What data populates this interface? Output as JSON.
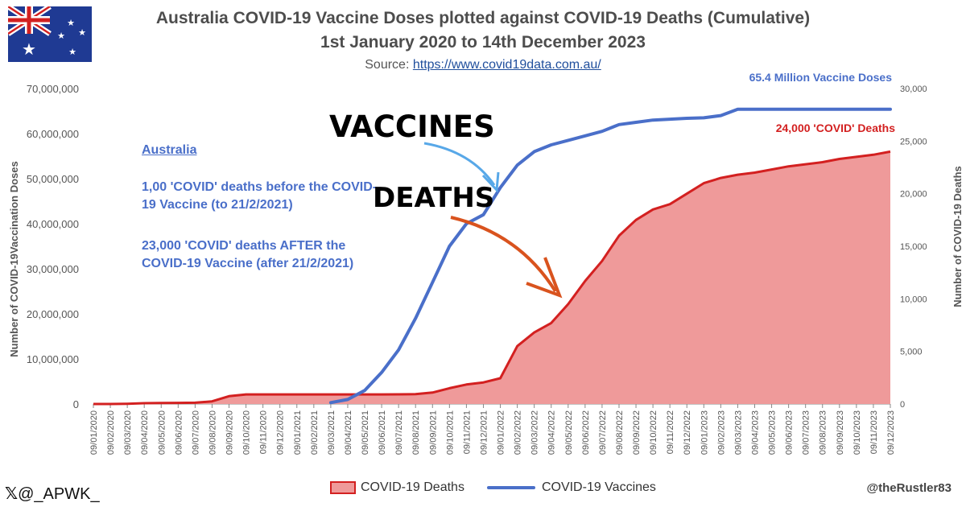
{
  "title_line1": "Australia COVID-19 Vaccine Doses plotted against COVID-19 Deaths (Cumulative)",
  "title_line2": "1st January 2020 to 14th December 2023",
  "source_prefix": "Source: ",
  "source_link": "https://www.covid19data.com.au/",
  "annotations": {
    "country": "Australia",
    "before": "1,00 'COVID' deaths before the COVID-19 Vaccine (to 21/2/2021)",
    "after": "23,000 'COVID' deaths AFTER the COVID-19 Vaccine (after 21/2/2021)",
    "vaccines_big": "VACCINES",
    "deaths_big": "DEATHS",
    "vaccines_end": "65.4 Million Vaccine Doses",
    "deaths_end": "24,000 'COVID' Deaths"
  },
  "handles": {
    "x_logo": "𝕏",
    "x_handle": "@_APWK_",
    "watermark": "@theRustler83"
  },
  "colors": {
    "vaccines": "#4a6fc9",
    "deaths_line": "#d32020",
    "deaths_fill": "#ef9a9a",
    "annotation": "#4a6fc9",
    "arrow_vaccines": "#58a8e8",
    "arrow_deaths": "#d9531e"
  },
  "chart_data": {
    "type": "line",
    "title": "Australia COVID-19 Vaccine Doses plotted against COVID-19 Deaths (Cumulative)",
    "subtitle": "1st January 2020 to 14th December 2023",
    "xlabel": "",
    "ylabel_left": "Number of COVID-19Vaccination Doses",
    "ylabel_right": "Number of COVID-19 Deaths",
    "ylim_left": [
      0,
      70000000
    ],
    "ylim_right": [
      0,
      30000
    ],
    "yticks_left": [
      "0",
      "10,000,000",
      "20,000,000",
      "30,000,000",
      "40,000,000",
      "50,000,000",
      "60,000,000",
      "70,000,000"
    ],
    "yticks_right": [
      "0",
      "5,000",
      "10,000",
      "15,000",
      "20,000",
      "25,000",
      "30,000"
    ],
    "grid": false,
    "legend_position": "bottom",
    "categories": [
      "09/01/2020",
      "09/02/2020",
      "09/03/2020",
      "09/04/2020",
      "09/05/2020",
      "09/06/2020",
      "09/07/2020",
      "09/08/2020",
      "09/09/2020",
      "09/10/2020",
      "09/11/2020",
      "09/12/2020",
      "09/01/2021",
      "09/02/2021",
      "09/03/2021",
      "09/04/2021",
      "09/05/2021",
      "09/06/2021",
      "09/07/2021",
      "09/08/2021",
      "09/09/2021",
      "09/10/2021",
      "09/11/2021",
      "09/12/2021",
      "09/01/2022",
      "09/02/2022",
      "09/03/2022",
      "09/04/2022",
      "09/05/2022",
      "09/06/2022",
      "09/07/2022",
      "09/08/2022",
      "09/09/2022",
      "09/10/2022",
      "09/11/2022",
      "09/12/2022",
      "09/01/2023",
      "09/02/2023",
      "09/03/2023",
      "09/04/2023",
      "09/05/2023",
      "09/06/2023",
      "09/07/2023",
      "09/08/2023",
      "09/09/2023",
      "09/10/2023",
      "09/11/2023",
      "09/12/2023"
    ],
    "series": [
      {
        "name": "COVID-19 Deaths",
        "axis": "right",
        "style": "area",
        "values": [
          0,
          0,
          20,
          80,
          100,
          104,
          120,
          250,
          740,
          909,
          908,
          908,
          909,
          909,
          910,
          910,
          912,
          912,
          920,
          930,
          1090,
          1500,
          1850,
          2050,
          2450,
          5500,
          6800,
          7700,
          9500,
          11700,
          13600,
          16000,
          17500,
          18500,
          19000,
          20000,
          21000,
          21500,
          21800,
          22000,
          22300,
          22600,
          22800,
          23000,
          23300,
          23500,
          23700,
          24000
        ]
      },
      {
        "name": "COVID-19 Vaccines",
        "axis": "left",
        "style": "line",
        "values": [
          null,
          null,
          null,
          null,
          null,
          null,
          null,
          null,
          null,
          null,
          null,
          null,
          null,
          null,
          300000,
          1000000,
          3000000,
          7000000,
          12000000,
          19000000,
          27000000,
          35000000,
          40000000,
          42000000,
          48000000,
          53000000,
          56000000,
          57500000,
          58500000,
          59500000,
          60500000,
          62000000,
          62500000,
          63000000,
          63200000,
          63400000,
          63500000,
          64000000,
          65400000,
          65400000,
          65400000,
          65400000,
          65400000,
          65400000,
          65400000,
          65400000,
          65400000,
          65400000
        ]
      }
    ]
  }
}
